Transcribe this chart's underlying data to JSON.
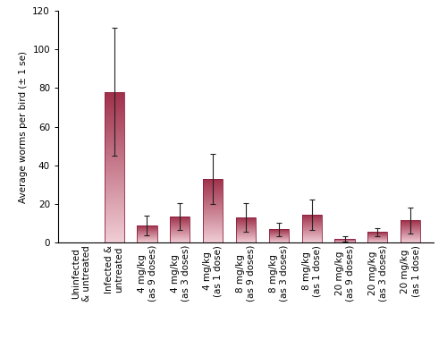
{
  "categories": [
    "Uninfected\n& untreated",
    "Infected &\nuntreated",
    "4 mg/kg\n(as 9 doses)",
    "4 mg/kg\n(as 3 doses)",
    "4 mg/kg\n(as 1 dose)",
    "8 mg/kg\n(as 9 doses)",
    "8 mg/kg\n(as 3 doses)",
    "8 mg/kg\n(as 1 dose)",
    "20 mg/kg\n(as 9 doses)",
    "20 mg/kg\n(as 3 doses)",
    "20 mg/kg\n(as 1 dose)"
  ],
  "values": [
    0,
    78,
    9,
    13.5,
    33,
    13,
    7,
    14.5,
    2,
    5.5,
    11.5
  ],
  "errors": [
    0,
    33,
    5,
    7,
    13,
    7.5,
    3.5,
    8,
    1.5,
    2,
    6.5
  ],
  "bar_color_top": "#a0304a",
  "bar_color_bottom": "#f0cdd5",
  "ylabel": "Average worms per bird (± 1 se)",
  "ylim": [
    0,
    120
  ],
  "yticks": [
    0,
    20,
    40,
    60,
    80,
    100,
    120
  ],
  "tick_fontsize": 7.5,
  "label_fontsize": 7.5,
  "background_color": "#ffffff",
  "bar_edge_color": "#8b2040",
  "error_color": "#222222",
  "bar_width": 0.6
}
